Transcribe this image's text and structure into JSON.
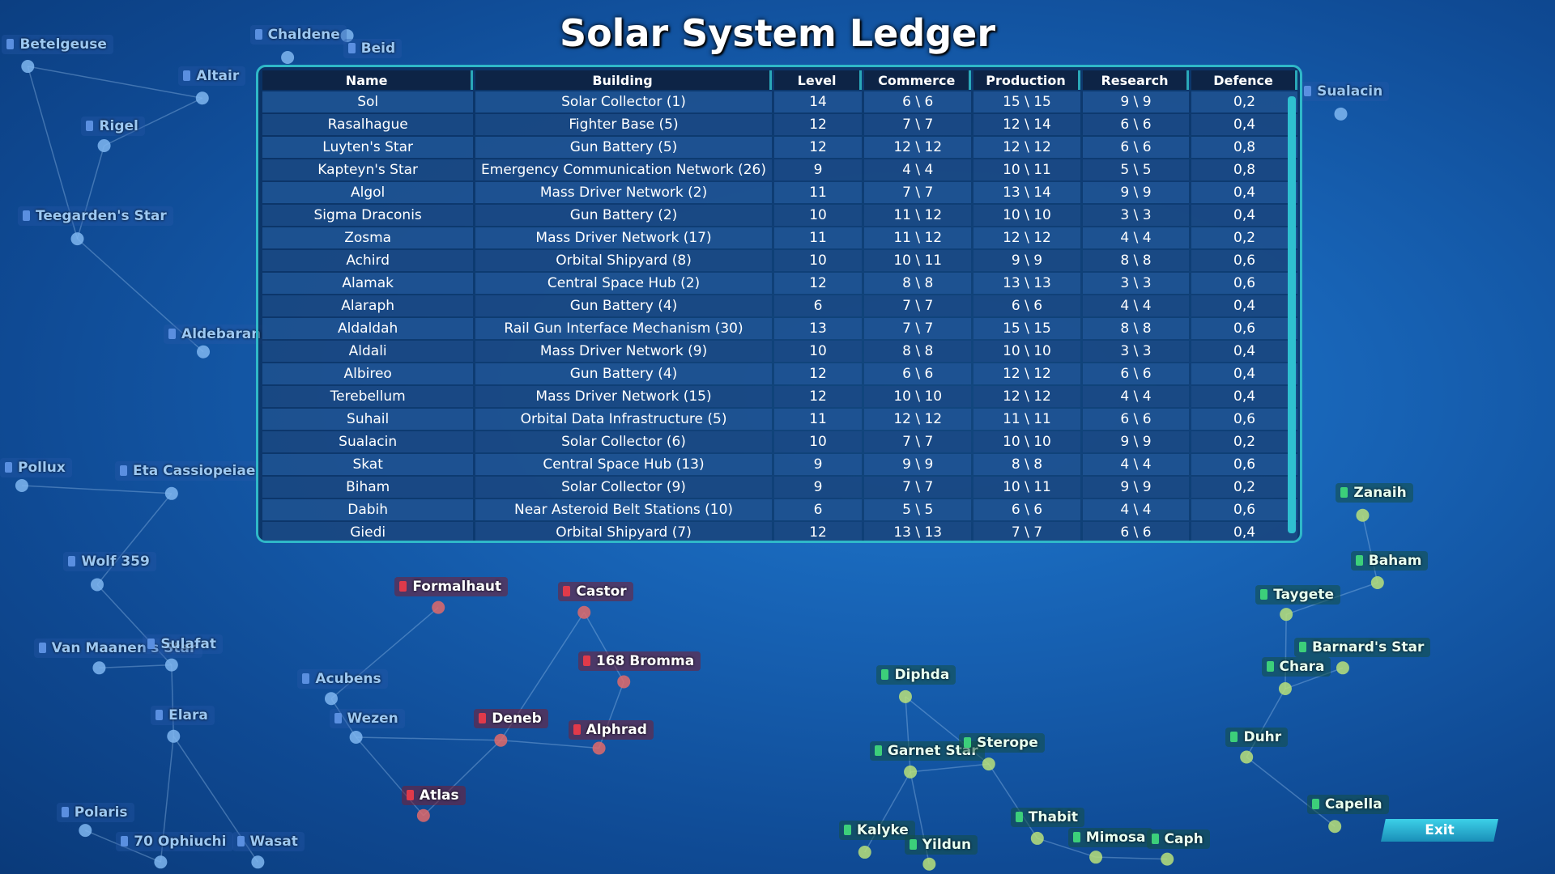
{
  "title": "Solar System Ledger",
  "ledger": {
    "columns": [
      "Name",
      "Building",
      "Level",
      "Commerce",
      "Production",
      "Research",
      "Defence"
    ],
    "rows": [
      [
        "Sol",
        "Solar Collector (1)",
        14,
        "6 \\ 6",
        "15 \\ 15",
        "9 \\ 9",
        "0,2"
      ],
      [
        "Rasalhague",
        "Fighter Base (5)",
        12,
        "7 \\ 7",
        "12 \\ 14",
        "6 \\ 6",
        "0,4"
      ],
      [
        "Luyten's Star",
        "Gun Battery (5)",
        12,
        "12 \\ 12",
        "12 \\ 12",
        "6 \\ 6",
        "0,8"
      ],
      [
        "Kapteyn's Star",
        "Emergency Communication Network (26)",
        9,
        "4 \\ 4",
        "10 \\ 11",
        "5 \\ 5",
        "0,8"
      ],
      [
        "Algol",
        "Mass Driver Network (2)",
        11,
        "7 \\ 7",
        "13 \\ 14",
        "9 \\ 9",
        "0,4"
      ],
      [
        "Sigma Draconis",
        "Gun Battery (2)",
        10,
        "11 \\ 12",
        "10 \\ 10",
        "3 \\ 3",
        "0,4"
      ],
      [
        "Zosma",
        "Mass Driver Network (17)",
        11,
        "11 \\ 12",
        "12 \\ 12",
        "4 \\ 4",
        "0,2"
      ],
      [
        "Achird",
        "Orbital Shipyard (8)",
        10,
        "10 \\ 11",
        "9 \\ 9",
        "8 \\ 8",
        "0,6"
      ],
      [
        "Alamak",
        "Central Space Hub (2)",
        12,
        "8 \\ 8",
        "13 \\ 13",
        "3 \\ 3",
        "0,6"
      ],
      [
        "Alaraph",
        "Gun Battery (4)",
        6,
        "7 \\ 7",
        "6 \\ 6",
        "4 \\ 4",
        "0,4"
      ],
      [
        "Aldaldah",
        "Rail Gun Interface Mechanism (30)",
        13,
        "7 \\ 7",
        "15 \\ 15",
        "8 \\ 8",
        "0,6"
      ],
      [
        "Aldali",
        "Mass Driver Network (9)",
        10,
        "8 \\ 8",
        "10 \\ 10",
        "3 \\ 3",
        "0,4"
      ],
      [
        "Albireo",
        "Gun Battery (4)",
        12,
        "6 \\ 6",
        "12 \\ 12",
        "6 \\ 6",
        "0,4"
      ],
      [
        "Terebellum",
        "Mass Driver Network (15)",
        12,
        "10 \\ 10",
        "12 \\ 12",
        "4 \\ 4",
        "0,4"
      ],
      [
        "Suhail",
        "Orbital Data Infrastructure (5)",
        11,
        "12 \\ 12",
        "11 \\ 11",
        "6 \\ 6",
        "0,6"
      ],
      [
        "Sualacin",
        "Solar Collector (6)",
        10,
        "7 \\ 7",
        "10 \\ 10",
        "9 \\ 9",
        "0,2"
      ],
      [
        "Skat",
        "Central Space Hub (13)",
        9,
        "9 \\ 9",
        "8 \\ 8",
        "4 \\ 4",
        "0,6"
      ],
      [
        "Biham",
        "Solar Collector (9)",
        9,
        "7 \\ 7",
        "10 \\ 11",
        "9 \\ 9",
        "0,2"
      ],
      [
        "Dabih",
        "Near Asteroid Belt Stations (10)",
        6,
        "5 \\ 5",
        "6 \\ 6",
        "4 \\ 4",
        "0,6"
      ],
      [
        "Giedi",
        "Orbital Shipyard (7)",
        12,
        "13 \\ 13",
        "7 \\ 7",
        "6 \\ 6",
        "0,4"
      ]
    ]
  },
  "map": {
    "stars": [
      "Betelgeuse",
      "Chaldene",
      "Beid",
      "Altair",
      "Rigel",
      "Teegarden's Star",
      "Aldebaran",
      "Pollux",
      "Eta Cassiopeiae",
      "Wolf 359",
      "Van Maanen's Star",
      "Sulafat",
      "Acubens",
      "Elara",
      "Wezen",
      "Polaris",
      "70 Ophiuchi",
      "Wasat",
      "Atlas",
      "Formalhaut",
      "Castor",
      "168 Bromma",
      "Deneb",
      "Alphrad",
      "Diphda",
      "Garnet Star",
      "Sterope",
      "Kalyke",
      "Yildun",
      "Thabit",
      "Mimosa",
      "Caph",
      "Capella",
      "Duhr",
      "Chara",
      "Barnard's Star",
      "Taygete",
      "Baham",
      "Zanaih",
      "Sualacin"
    ]
  },
  "exit": "Exit"
}
